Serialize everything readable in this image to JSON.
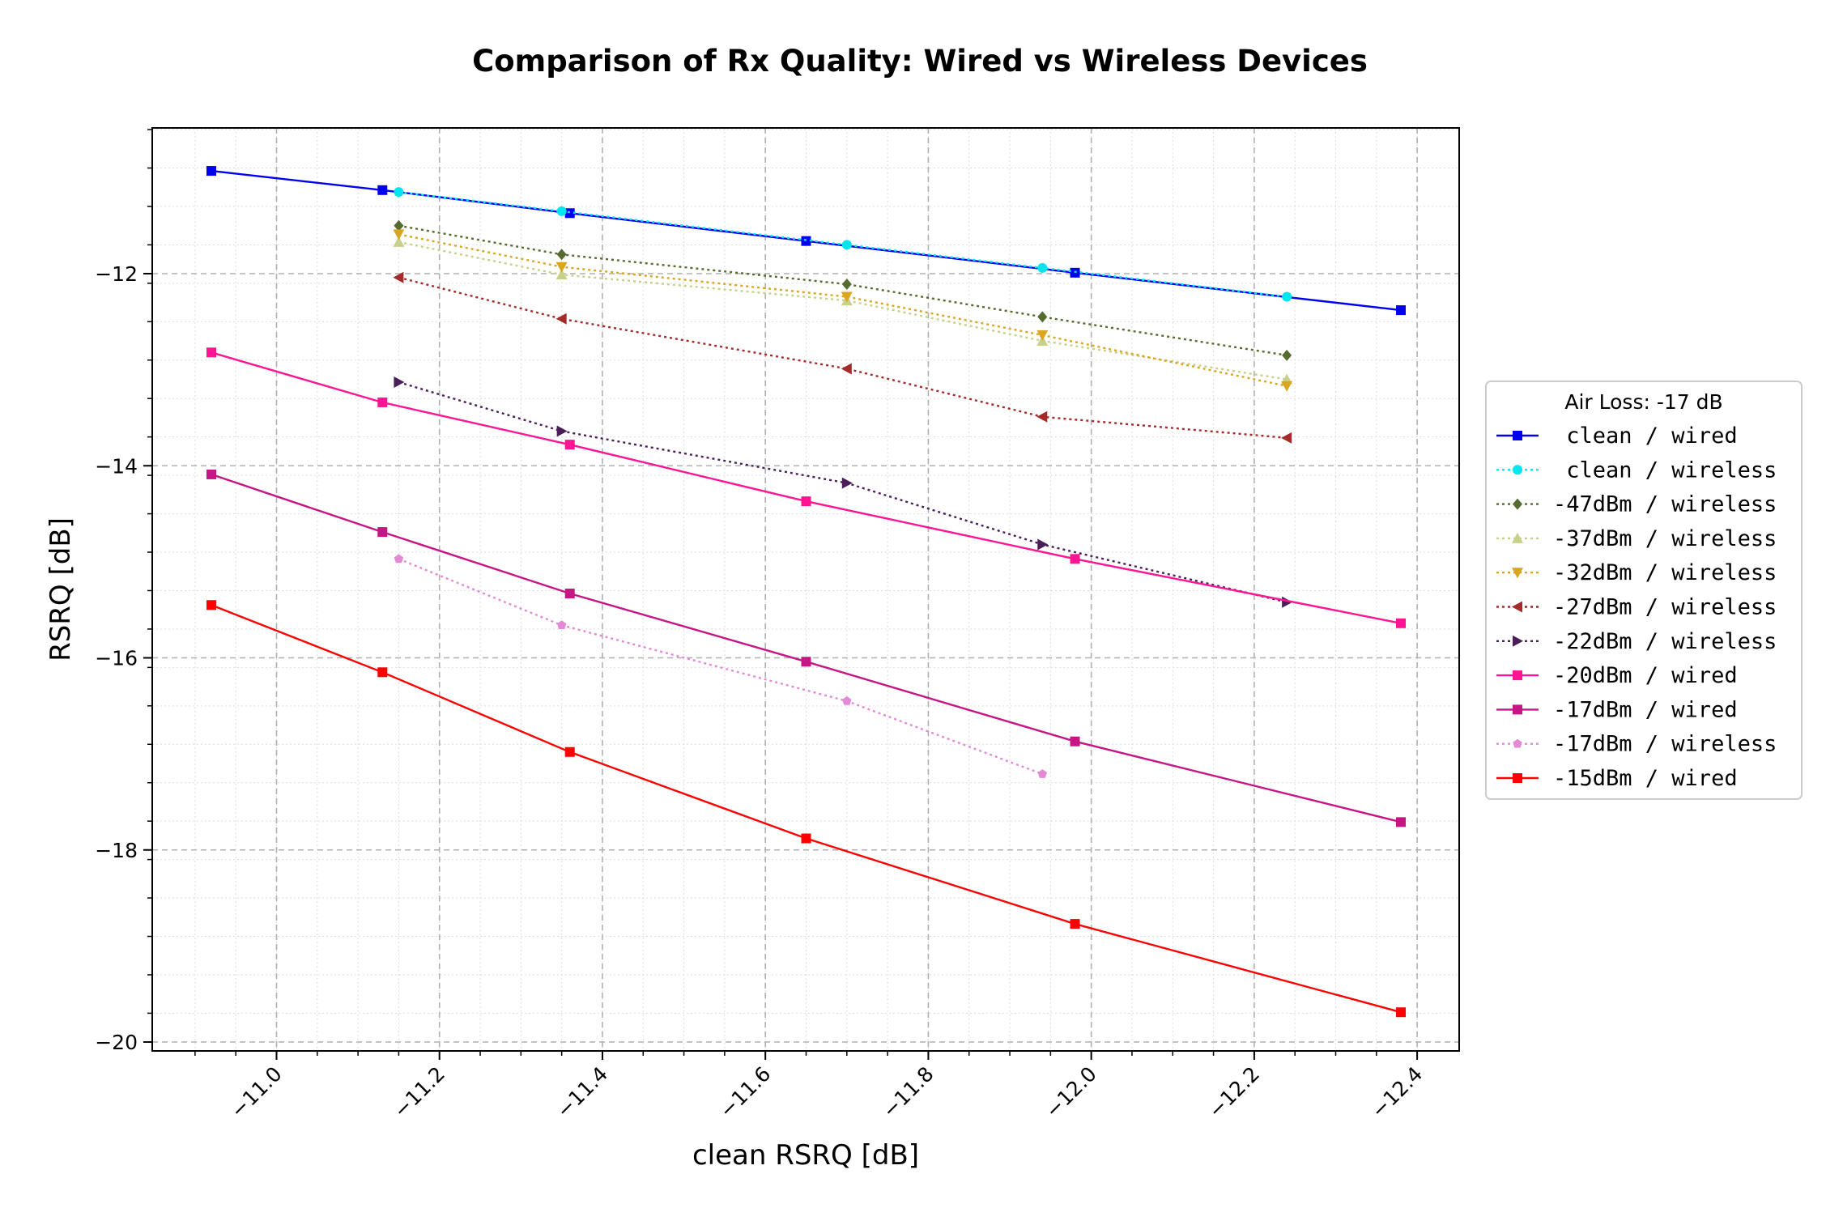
{
  "chart_data": {
    "type": "line",
    "title": "Comparison of Rx Quality: Wired vs Wireless Devices",
    "xlabel": "clean RSRQ [dB]",
    "ylabel": "RSRQ [dB]",
    "x_inverted": true,
    "xlim": [
      -10.92,
      -12.44
    ],
    "ylim": [
      -20.1,
      -10.5
    ],
    "x_ticks": [
      -11.0,
      -11.2,
      -11.4,
      -11.6,
      -11.8,
      -12.0,
      -12.2,
      -12.4
    ],
    "x_tick_labels": [
      "−11.0",
      "−11.2",
      "−11.4",
      "−11.6",
      "−11.8",
      "−12.0",
      "−12.2",
      "−12.4"
    ],
    "y_ticks": [
      -12,
      -14,
      -16,
      -18,
      -20
    ],
    "y_tick_labels": [
      "−12",
      "−14",
      "−16",
      "−18",
      "−20"
    ],
    "grid": true,
    "legend": {
      "title": "Air Loss: -17 dB",
      "placement": "outside-right"
    },
    "series": [
      {
        "name": " clean / wired",
        "color": "#0000ee",
        "dash": "solid",
        "marker": "square",
        "x": [
          -10.92,
          -11.13,
          -11.36,
          -11.65,
          -11.98,
          -12.38
        ],
        "y": [
          -10.93,
          -11.13,
          -11.37,
          -11.66,
          -11.99,
          -12.38
        ]
      },
      {
        "name": " clean / wireless",
        "color": "#00e5ee",
        "dash": "dotted",
        "marker": "circle",
        "x": [
          -11.15,
          -11.35,
          -11.7,
          -11.94,
          -12.24
        ],
        "y": [
          -11.15,
          -11.35,
          -11.7,
          -11.94,
          -12.24
        ]
      },
      {
        "name": "-47dBm / wireless",
        "color": "#556b2f",
        "dash": "dotted",
        "marker": "diamond",
        "x": [
          -11.15,
          -11.35,
          -11.7,
          -11.94,
          -12.24
        ],
        "y": [
          -11.5,
          -11.8,
          -12.11,
          -12.45,
          -12.85
        ]
      },
      {
        "name": "-37dBm / wireless",
        "color": "#c8d08a",
        "dash": "dotted",
        "marker": "triangle-up",
        "x": [
          -11.15,
          -11.35,
          -11.7,
          -11.94,
          -12.24
        ],
        "y": [
          -11.67,
          -12.01,
          -12.28,
          -12.7,
          -13.1
        ]
      },
      {
        "name": "-32dBm / wireless",
        "color": "#daa520",
        "dash": "dotted",
        "marker": "triangle-down",
        "x": [
          -11.15,
          -11.35,
          -11.7,
          -11.94,
          -12.24
        ],
        "y": [
          -11.59,
          -11.93,
          -12.24,
          -12.64,
          -13.17
        ]
      },
      {
        "name": "-27dBm / wireless",
        "color": "#a52a2a",
        "dash": "dotted",
        "marker": "triangle-left",
        "x": [
          -11.15,
          -11.35,
          -11.7,
          -11.94,
          -12.24
        ],
        "y": [
          -12.04,
          -12.47,
          -12.99,
          -13.49,
          -13.71
        ]
      },
      {
        "name": "-22dBm / wireless",
        "color": "#4b1e5a",
        "dash": "dotted",
        "marker": "triangle-right",
        "x": [
          -11.15,
          -11.35,
          -11.7,
          -11.94,
          -12.24
        ],
        "y": [
          -13.13,
          -13.64,
          -14.18,
          -14.82,
          -15.42
        ]
      },
      {
        "name": "-20dBm / wired",
        "color": "#ff1493",
        "dash": "solid",
        "marker": "square",
        "x": [
          -10.92,
          -11.13,
          -11.36,
          -11.65,
          -11.98,
          -12.38
        ],
        "y": [
          -12.82,
          -13.34,
          -13.78,
          -14.37,
          -14.97,
          -15.64
        ]
      },
      {
        "name": "-17dBm / wired",
        "color": "#c71585",
        "dash": "solid",
        "marker": "square",
        "x": [
          -10.92,
          -11.13,
          -11.36,
          -11.65,
          -11.98,
          -12.38
        ],
        "y": [
          -14.09,
          -14.69,
          -15.33,
          -16.04,
          -16.87,
          -17.71
        ]
      },
      {
        "name": "-17dBm / wireless",
        "color": "#e38ad6",
        "dash": "dotted",
        "marker": "pentagon",
        "x": [
          -11.15,
          -11.35,
          -11.7,
          -11.94
        ],
        "y": [
          -14.97,
          -15.66,
          -16.45,
          -17.21
        ]
      },
      {
        "name": "-15dBm / wired",
        "color": "#ff0000",
        "dash": "solid",
        "marker": "square",
        "x": [
          -10.92,
          -11.13,
          -11.36,
          -11.65,
          -11.98,
          -12.38
        ],
        "y": [
          -15.45,
          -16.15,
          -16.98,
          -17.88,
          -18.77,
          -19.69
        ]
      }
    ]
  }
}
